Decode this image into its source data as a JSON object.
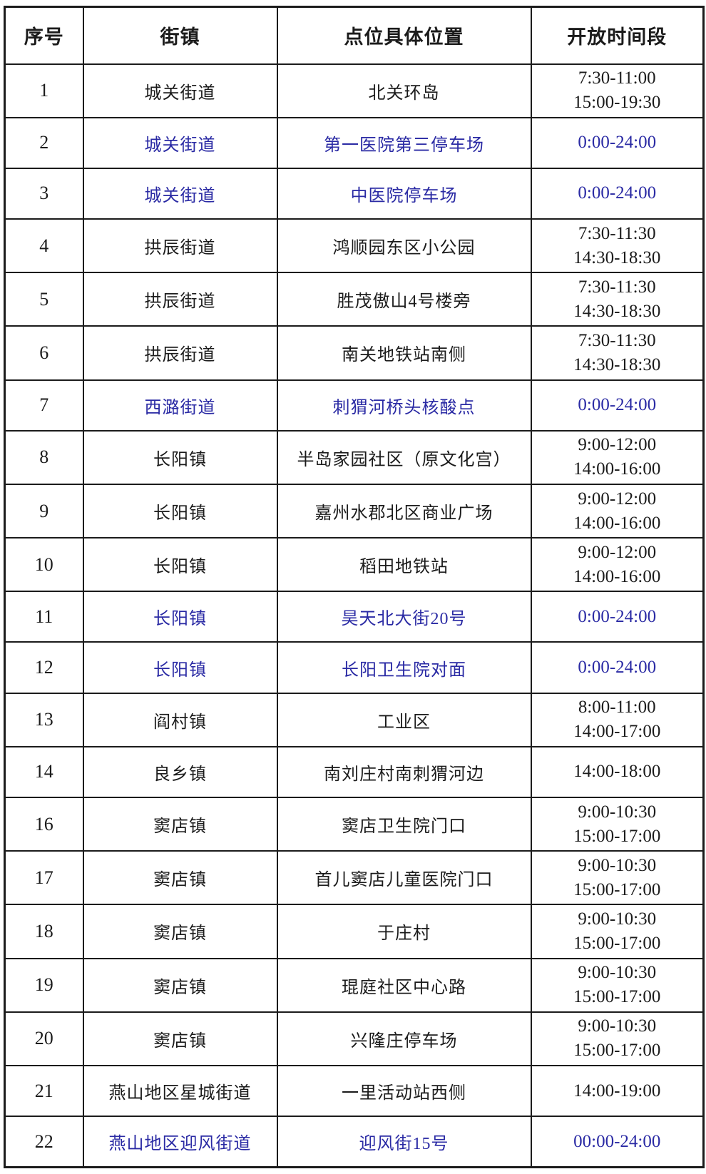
{
  "colors": {
    "highlight_text": "#2a2aa4",
    "normal_text": "#1b1b1b",
    "border": "#1b1b1b",
    "background": "#ffffff"
  },
  "table": {
    "headers": [
      "序号",
      "街镇",
      "点位具体位置",
      "开放时间段"
    ],
    "rows": [
      {
        "no": "1",
        "town": "城关街道",
        "location": "北关环岛",
        "times": [
          "7:30-11:00",
          "15:00-19:30"
        ],
        "highlight": false
      },
      {
        "no": "2",
        "town": "城关街道",
        "location": "第一医院第三停车场",
        "times": [
          "0:00-24:00"
        ],
        "highlight": true
      },
      {
        "no": "3",
        "town": "城关街道",
        "location": "中医院停车场",
        "times": [
          "0:00-24:00"
        ],
        "highlight": true
      },
      {
        "no": "4",
        "town": "拱辰街道",
        "location": "鸿顺园东区小公园",
        "times": [
          "7:30-11:30",
          "14:30-18:30"
        ],
        "highlight": false
      },
      {
        "no": "5",
        "town": "拱辰街道",
        "location": "胜茂傲山4号楼旁",
        "times": [
          "7:30-11:30",
          "14:30-18:30"
        ],
        "highlight": false
      },
      {
        "no": "6",
        "town": "拱辰街道",
        "location": "南关地铁站南侧",
        "times": [
          "7:30-11:30",
          "14:30-18:30"
        ],
        "highlight": false
      },
      {
        "no": "7",
        "town": "西潞街道",
        "location": "刺猬河桥头核酸点",
        "times": [
          "0:00-24:00"
        ],
        "highlight": true
      },
      {
        "no": "8",
        "town": "长阳镇",
        "location": "半岛家园社区（原文化宫）",
        "times": [
          "9:00-12:00",
          "14:00-16:00"
        ],
        "highlight": false
      },
      {
        "no": "9",
        "town": "长阳镇",
        "location": "嘉州水郡北区商业广场",
        "times": [
          "9:00-12:00",
          "14:00-16:00"
        ],
        "highlight": false
      },
      {
        "no": "10",
        "town": "长阳镇",
        "location": "稻田地铁站",
        "times": [
          "9:00-12:00",
          "14:00-16:00"
        ],
        "highlight": false
      },
      {
        "no": "11",
        "town": "长阳镇",
        "location": "昊天北大街20号",
        "times": [
          "0:00-24:00"
        ],
        "highlight": true
      },
      {
        "no": "12",
        "town": "长阳镇",
        "location": "长阳卫生院对面",
        "times": [
          "0:00-24:00"
        ],
        "highlight": true
      },
      {
        "no": "13",
        "town": "阎村镇",
        "location": "工业区",
        "times": [
          "8:00-11:00",
          "14:00-17:00"
        ],
        "highlight": false
      },
      {
        "no": "14",
        "town": "良乡镇",
        "location": "南刘庄村南刺猬河边",
        "times": [
          "14:00-18:00"
        ],
        "highlight": false
      },
      {
        "no": "16",
        "town": "窦店镇",
        "location": "窦店卫生院门口",
        "times": [
          "9:00-10:30",
          "15:00-17:00"
        ],
        "highlight": false
      },
      {
        "no": "17",
        "town": "窦店镇",
        "location": "首儿窦店儿童医院门口",
        "times": [
          "9:00-10:30",
          "15:00-17:00"
        ],
        "highlight": false
      },
      {
        "no": "18",
        "town": "窦店镇",
        "location": "于庄村",
        "times": [
          "9:00-10:30",
          "15:00-17:00"
        ],
        "highlight": false
      },
      {
        "no": "19",
        "town": "窦店镇",
        "location": "琨庭社区中心路",
        "times": [
          "9:00-10:30",
          "15:00-17:00"
        ],
        "highlight": false
      },
      {
        "no": "20",
        "town": "窦店镇",
        "location": "兴隆庄停车场",
        "times": [
          "9:00-10:30",
          "15:00-17:00"
        ],
        "highlight": false
      },
      {
        "no": "21",
        "town": "燕山地区星城街道",
        "location": "一里活动站西侧",
        "times": [
          "14:00-19:00"
        ],
        "highlight": false
      },
      {
        "no": "22",
        "town": "燕山地区迎风街道",
        "location": "迎风街15号",
        "times": [
          "00:00-24:00"
        ],
        "highlight": true
      }
    ]
  }
}
